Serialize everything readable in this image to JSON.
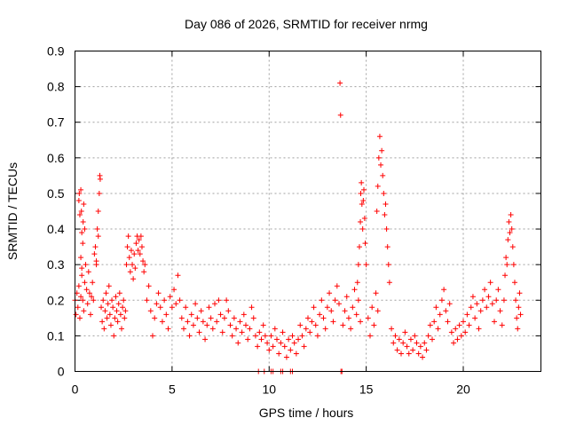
{
  "chart_data": {
    "type": "scatter",
    "title": "Day 086 of 2026, SRMTID for receiver nrmg",
    "xlabel": "GPS time / hours",
    "ylabel": "SRMTID / TECUs",
    "xlim": [
      0,
      24
    ],
    "ylim": [
      0,
      0.9
    ],
    "xticks": [
      0,
      5,
      10,
      15,
      20
    ],
    "yticks": [
      0,
      0.1,
      0.2,
      0.3,
      0.4,
      0.5,
      0.6,
      0.7,
      0.8,
      0.9
    ],
    "grid": true,
    "marker": "+",
    "color": "#ff0000",
    "series": [
      {
        "name": "SRMTID",
        "points": [
          [
            0.0,
            0.2
          ],
          [
            0.05,
            0.16
          ],
          [
            0.1,
            0.22
          ],
          [
            0.15,
            0.18
          ],
          [
            0.2,
            0.24
          ],
          [
            0.25,
            0.15
          ],
          [
            0.3,
            0.21
          ],
          [
            0.35,
            0.27
          ],
          [
            0.4,
            0.2
          ],
          [
            0.45,
            0.17
          ],
          [
            0.5,
            0.25
          ],
          [
            0.55,
            0.3
          ],
          [
            0.6,
            0.23
          ],
          [
            0.65,
            0.19
          ],
          [
            0.7,
            0.28
          ],
          [
            0.75,
            0.22
          ],
          [
            0.8,
            0.16
          ],
          [
            0.85,
            0.21
          ],
          [
            0.9,
            0.25
          ],
          [
            0.95,
            0.2
          ],
          [
            0.2,
            0.48
          ],
          [
            0.22,
            0.5
          ],
          [
            0.25,
            0.44
          ],
          [
            0.3,
            0.51
          ],
          [
            0.33,
            0.45
          ],
          [
            0.35,
            0.39
          ],
          [
            0.4,
            0.36
          ],
          [
            0.42,
            0.42
          ],
          [
            0.45,
            0.47
          ],
          [
            0.3,
            0.32
          ],
          [
            0.35,
            0.29
          ],
          [
            0.5,
            0.4
          ],
          [
            1.0,
            0.33
          ],
          [
            1.05,
            0.35
          ],
          [
            1.1,
            0.31
          ],
          [
            1.15,
            0.4
          ],
          [
            1.2,
            0.45
          ],
          [
            1.25,
            0.5
          ],
          [
            1.28,
            0.55
          ],
          [
            1.3,
            0.54
          ],
          [
            1.2,
            0.38
          ],
          [
            1.1,
            0.3
          ],
          [
            1.35,
            0.18
          ],
          [
            1.4,
            0.14
          ],
          [
            1.45,
            0.2
          ],
          [
            1.5,
            0.12
          ],
          [
            1.55,
            0.17
          ],
          [
            1.6,
            0.22
          ],
          [
            1.65,
            0.15
          ],
          [
            1.7,
            0.19
          ],
          [
            1.75,
            0.24
          ],
          [
            1.8,
            0.16
          ],
          [
            1.85,
            0.13
          ],
          [
            1.9,
            0.2
          ],
          [
            1.95,
            0.18
          ],
          [
            2.0,
            0.1
          ],
          [
            2.05,
            0.15
          ],
          [
            2.1,
            0.21
          ],
          [
            2.15,
            0.17
          ],
          [
            2.2,
            0.14
          ],
          [
            2.25,
            0.19
          ],
          [
            2.3,
            0.22
          ],
          [
            2.35,
            0.16
          ],
          [
            2.4,
            0.12
          ],
          [
            2.45,
            0.18
          ],
          [
            2.5,
            0.2
          ],
          [
            2.55,
            0.15
          ],
          [
            2.6,
            0.17
          ],
          [
            2.65,
            0.3
          ],
          [
            2.7,
            0.35
          ],
          [
            2.75,
            0.38
          ],
          [
            2.8,
            0.32
          ],
          [
            2.85,
            0.28
          ],
          [
            2.9,
            0.34
          ],
          [
            2.95,
            0.3
          ],
          [
            3.0,
            0.26
          ],
          [
            3.05,
            0.33
          ],
          [
            3.1,
            0.29
          ],
          [
            3.15,
            0.36
          ],
          [
            3.2,
            0.38
          ],
          [
            3.25,
            0.34
          ],
          [
            3.3,
            0.37
          ],
          [
            3.35,
            0.33
          ],
          [
            3.4,
            0.38
          ],
          [
            3.45,
            0.35
          ],
          [
            3.5,
            0.31
          ],
          [
            3.55,
            0.28
          ],
          [
            3.6,
            0.3
          ],
          [
            3.7,
            0.2
          ],
          [
            3.8,
            0.24
          ],
          [
            3.9,
            0.17
          ],
          [
            4.0,
            0.1
          ],
          [
            4.1,
            0.15
          ],
          [
            4.2,
            0.19
          ],
          [
            4.3,
            0.22
          ],
          [
            4.4,
            0.18
          ],
          [
            4.5,
            0.14
          ],
          [
            4.6,
            0.2
          ],
          [
            4.7,
            0.16
          ],
          [
            4.8,
            0.12
          ],
          [
            4.9,
            0.21
          ],
          [
            5.0,
            0.18
          ],
          [
            5.1,
            0.23
          ],
          [
            5.2,
            0.19
          ],
          [
            5.3,
            0.27
          ],
          [
            5.4,
            0.2
          ],
          [
            5.5,
            0.15
          ],
          [
            5.6,
            0.12
          ],
          [
            5.7,
            0.18
          ],
          [
            5.8,
            0.14
          ],
          [
            5.9,
            0.1
          ],
          [
            6.0,
            0.16
          ],
          [
            6.1,
            0.13
          ],
          [
            6.2,
            0.19
          ],
          [
            6.3,
            0.15
          ],
          [
            6.4,
            0.11
          ],
          [
            6.5,
            0.17
          ],
          [
            6.6,
            0.14
          ],
          [
            6.7,
            0.09
          ],
          [
            6.8,
            0.13
          ],
          [
            6.9,
            0.18
          ],
          [
            7.0,
            0.15
          ],
          [
            7.1,
            0.12
          ],
          [
            7.2,
            0.19
          ],
          [
            7.3,
            0.14
          ],
          [
            7.4,
            0.2
          ],
          [
            7.5,
            0.16
          ],
          [
            7.6,
            0.11
          ],
          [
            7.7,
            0.15
          ],
          [
            7.8,
            0.2
          ],
          [
            7.9,
            0.17
          ],
          [
            8.0,
            0.13
          ],
          [
            8.1,
            0.1
          ],
          [
            8.2,
            0.15
          ],
          [
            8.3,
            0.12
          ],
          [
            8.4,
            0.08
          ],
          [
            8.5,
            0.14
          ],
          [
            8.6,
            0.11
          ],
          [
            8.7,
            0.16
          ],
          [
            8.8,
            0.13
          ],
          [
            8.9,
            0.09
          ],
          [
            9.0,
            0.12
          ],
          [
            9.1,
            0.18
          ],
          [
            9.2,
            0.15
          ],
          [
            9.3,
            0.1
          ],
          [
            9.4,
            0.07
          ],
          [
            9.5,
            0.11
          ],
          [
            9.6,
            0.09
          ],
          [
            9.7,
            0.13
          ],
          [
            9.8,
            0.1
          ],
          [
            9.9,
            0.08
          ],
          [
            10.0,
            0.06
          ],
          [
            10.1,
            0.1
          ],
          [
            10.2,
            0.07
          ],
          [
            10.3,
            0.12
          ],
          [
            10.4,
            0.09
          ],
          [
            10.5,
            0.05
          ],
          [
            10.6,
            0.08
          ],
          [
            10.7,
            0.11
          ],
          [
            10.8,
            0.07
          ],
          [
            10.9,
            0.04
          ],
          [
            11.0,
            0.09
          ],
          [
            11.1,
            0.06
          ],
          [
            11.2,
            0.1
          ],
          [
            11.3,
            0.08
          ],
          [
            11.4,
            0.05
          ],
          [
            11.5,
            0.09
          ],
          [
            11.6,
            0.13
          ],
          [
            11.7,
            0.1
          ],
          [
            11.8,
            0.07
          ],
          [
            11.9,
            0.12
          ],
          [
            12.0,
            0.15
          ],
          [
            12.1,
            0.11
          ],
          [
            12.2,
            0.14
          ],
          [
            12.3,
            0.18
          ],
          [
            12.4,
            0.13
          ],
          [
            12.5,
            0.1
          ],
          [
            12.6,
            0.16
          ],
          [
            12.7,
            0.2
          ],
          [
            12.8,
            0.15
          ],
          [
            12.9,
            0.12
          ],
          [
            13.0,
            0.18
          ],
          [
            13.1,
            0.22
          ],
          [
            13.2,
            0.17
          ],
          [
            13.3,
            0.14
          ],
          [
            13.4,
            0.2
          ],
          [
            13.5,
            0.24
          ],
          [
            13.6,
            0.19
          ],
          [
            13.65,
            0.81
          ],
          [
            13.68,
            0.72
          ],
          [
            13.8,
            0.13
          ],
          [
            13.9,
            0.17
          ],
          [
            14.0,
            0.21
          ],
          [
            14.1,
            0.15
          ],
          [
            14.2,
            0.12
          ],
          [
            14.3,
            0.18
          ],
          [
            14.4,
            0.23
          ],
          [
            14.5,
            0.16
          ],
          [
            14.6,
            0.2
          ],
          [
            14.7,
            0.14
          ],
          [
            14.55,
            0.25
          ],
          [
            14.6,
            0.3
          ],
          [
            14.65,
            0.35
          ],
          [
            14.7,
            0.42
          ],
          [
            14.72,
            0.5
          ],
          [
            14.75,
            0.53
          ],
          [
            14.78,
            0.47
          ],
          [
            14.82,
            0.4
          ],
          [
            14.85,
            0.48
          ],
          [
            14.88,
            0.51
          ],
          [
            14.92,
            0.43
          ],
          [
            14.95,
            0.36
          ],
          [
            15.0,
            0.3
          ],
          [
            15.1,
            0.15
          ],
          [
            15.2,
            0.1
          ],
          [
            15.3,
            0.18
          ],
          [
            15.4,
            0.13
          ],
          [
            15.5,
            0.22
          ],
          [
            15.6,
            0.17
          ],
          [
            15.55,
            0.45
          ],
          [
            15.6,
            0.52
          ],
          [
            15.65,
            0.6
          ],
          [
            15.7,
            0.66
          ],
          [
            15.75,
            0.58
          ],
          [
            15.8,
            0.62
          ],
          [
            15.85,
            0.55
          ],
          [
            15.9,
            0.5
          ],
          [
            15.95,
            0.44
          ],
          [
            16.0,
            0.47
          ],
          [
            16.05,
            0.4
          ],
          [
            16.1,
            0.35
          ],
          [
            16.15,
            0.3
          ],
          [
            16.2,
            0.25
          ],
          [
            16.3,
            0.12
          ],
          [
            16.4,
            0.08
          ],
          [
            16.5,
            0.1
          ],
          [
            16.6,
            0.06
          ],
          [
            16.7,
            0.09
          ],
          [
            16.8,
            0.05
          ],
          [
            16.9,
            0.08
          ],
          [
            17.0,
            0.11
          ],
          [
            17.1,
            0.07
          ],
          [
            17.2,
            0.05
          ],
          [
            17.3,
            0.09
          ],
          [
            17.4,
            0.06
          ],
          [
            17.5,
            0.1
          ],
          [
            17.6,
            0.08
          ],
          [
            17.7,
            0.05
          ],
          [
            17.8,
            0.07
          ],
          [
            17.9,
            0.04
          ],
          [
            18.0,
            0.08
          ],
          [
            18.1,
            0.06
          ],
          [
            18.2,
            0.1
          ],
          [
            18.3,
            0.13
          ],
          [
            18.4,
            0.09
          ],
          [
            18.5,
            0.14
          ],
          [
            18.6,
            0.18
          ],
          [
            18.7,
            0.12
          ],
          [
            18.8,
            0.16
          ],
          [
            18.9,
            0.2
          ],
          [
            19.0,
            0.23
          ],
          [
            19.1,
            0.17
          ],
          [
            19.2,
            0.14
          ],
          [
            19.3,
            0.19
          ],
          [
            19.4,
            0.11
          ],
          [
            19.5,
            0.08
          ],
          [
            19.6,
            0.12
          ],
          [
            19.7,
            0.09
          ],
          [
            19.8,
            0.13
          ],
          [
            19.9,
            0.1
          ],
          [
            20.0,
            0.14
          ],
          [
            20.1,
            0.11
          ],
          [
            20.2,
            0.16
          ],
          [
            20.3,
            0.13
          ],
          [
            20.4,
            0.18
          ],
          [
            20.5,
            0.21
          ],
          [
            20.6,
            0.15
          ],
          [
            20.7,
            0.19
          ],
          [
            20.8,
            0.12
          ],
          [
            20.9,
            0.17
          ],
          [
            21.0,
            0.2
          ],
          [
            21.1,
            0.23
          ],
          [
            21.2,
            0.18
          ],
          [
            21.3,
            0.21
          ],
          [
            21.4,
            0.25
          ],
          [
            21.5,
            0.19
          ],
          [
            21.6,
            0.14
          ],
          [
            21.7,
            0.2
          ],
          [
            21.8,
            0.23
          ],
          [
            21.9,
            0.17
          ],
          [
            22.0,
            0.13
          ],
          [
            22.1,
            0.2
          ],
          [
            22.15,
            0.27
          ],
          [
            22.2,
            0.32
          ],
          [
            22.25,
            0.3
          ],
          [
            22.3,
            0.37
          ],
          [
            22.35,
            0.42
          ],
          [
            22.4,
            0.39
          ],
          [
            22.45,
            0.44
          ],
          [
            22.5,
            0.4
          ],
          [
            22.55,
            0.35
          ],
          [
            22.6,
            0.3
          ],
          [
            22.65,
            0.25
          ],
          [
            22.7,
            0.2
          ],
          [
            22.75,
            0.15
          ],
          [
            22.8,
            0.12
          ],
          [
            22.85,
            0.18
          ],
          [
            22.9,
            0.22
          ],
          [
            22.95,
            0.16
          ],
          [
            9.45,
            0.0
          ],
          [
            9.75,
            0.0
          ],
          [
            10.1,
            0.0
          ],
          [
            10.2,
            0.0
          ],
          [
            10.6,
            0.0
          ],
          [
            10.7,
            0.0
          ],
          [
            11.1,
            0.0
          ],
          [
            11.2,
            0.0
          ],
          [
            13.7,
            0.0
          ],
          [
            13.75,
            0.0
          ]
        ]
      }
    ]
  }
}
